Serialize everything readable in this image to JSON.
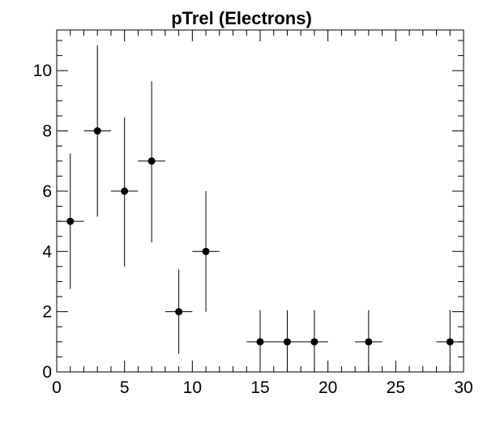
{
  "chart_data": {
    "type": "scatter",
    "title": "pTrel (Electrons)",
    "xlabel": "",
    "ylabel": "",
    "xlim": [
      0,
      30
    ],
    "ylim": [
      0,
      11.35
    ],
    "x_ticks": [
      0,
      5,
      10,
      15,
      20,
      25,
      30
    ],
    "y_ticks": [
      0,
      2,
      4,
      6,
      8,
      10
    ],
    "x_minor_step": 1,
    "y_minor_step": 0.5,
    "grid": false,
    "legend": "none",
    "marker_color": "#000000",
    "points": [
      {
        "x": 1,
        "x_err": 1,
        "y": 5,
        "y_low": 2.75,
        "y_high": 7.25
      },
      {
        "x": 3,
        "x_err": 1,
        "y": 8,
        "y_low": 5.15,
        "y_high": 10.85
      },
      {
        "x": 5,
        "x_err": 1,
        "y": 6,
        "y_low": 3.5,
        "y_high": 8.45
      },
      {
        "x": 7,
        "x_err": 1,
        "y": 7,
        "y_low": 4.3,
        "y_high": 9.65
      },
      {
        "x": 9,
        "x_err": 1,
        "y": 2,
        "y_low": 0.6,
        "y_high": 3.4
      },
      {
        "x": 11,
        "x_err": 1,
        "y": 4,
        "y_low": 2.0,
        "y_high": 6.0
      },
      {
        "x": 15,
        "x_err": 1,
        "y": 1,
        "y_low": 0,
        "y_high": 2.05
      },
      {
        "x": 17,
        "x_err": 1,
        "y": 1,
        "y_low": 0,
        "y_high": 2.05
      },
      {
        "x": 19,
        "x_err": 1,
        "y": 1,
        "y_low": 0,
        "y_high": 2.05
      },
      {
        "x": 23,
        "x_err": 1,
        "y": 1,
        "y_low": 0,
        "y_high": 2.05
      },
      {
        "x": 29,
        "x_err": 1,
        "y": 1,
        "y_low": 0,
        "y_high": 2.05
      }
    ]
  }
}
